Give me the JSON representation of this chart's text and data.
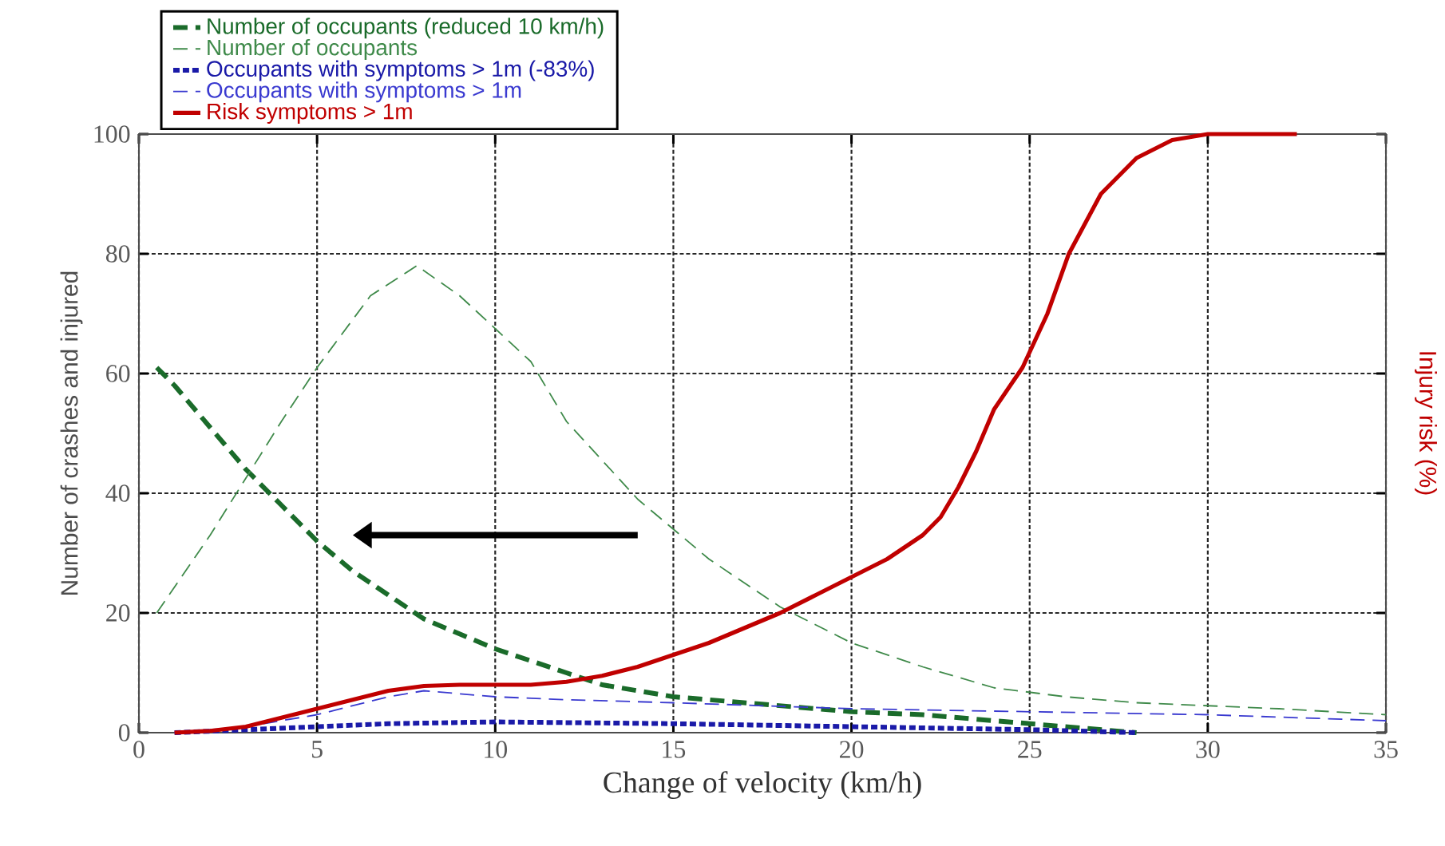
{
  "chart_data": {
    "type": "line",
    "xlabel": "Change of velocity (km/h)",
    "ylabel": "Number of crashes and injured",
    "y2label": "Injury risk (%)",
    "xlim": [
      0,
      35
    ],
    "xticks": [
      0,
      5,
      10,
      15,
      20,
      25,
      30,
      35
    ],
    "ylim": [
      0,
      100
    ],
    "yticks": [
      0,
      20,
      40,
      60,
      80,
      100
    ],
    "grid": true,
    "legend": "top left",
    "series": [
      {
        "name": "Number of occupants (reduced 10 km/h)",
        "color": "#1a6b2a",
        "line_style": "dashed",
        "x": [
          0.5,
          1,
          2,
          3,
          4,
          5,
          6,
          7,
          8,
          9,
          10,
          11,
          12,
          13,
          14,
          15,
          16,
          18,
          20,
          22,
          24,
          26,
          28
        ],
        "values": [
          61,
          58,
          51,
          44,
          38,
          32,
          27,
          23,
          19,
          16.5,
          14,
          12,
          10,
          8,
          7,
          6,
          5.5,
          4.5,
          3.5,
          3,
          2,
          1,
          0
        ]
      },
      {
        "name": "Number of occupants",
        "color": "#3f8a4a",
        "line_style": "dashed",
        "x": [
          0.5,
          2,
          4,
          5,
          6.5,
          7.8,
          9,
          11,
          12,
          14,
          16,
          18,
          20,
          22,
          24,
          26,
          28,
          30,
          32,
          35
        ],
        "values": [
          20,
          33,
          52,
          61,
          73,
          78,
          73,
          62,
          52,
          39,
          29,
          21,
          15,
          11,
          7.5,
          6,
          5,
          4.5,
          4,
          3
        ]
      },
      {
        "name": "Occupants with symptoms > 1m (-83%)",
        "color": "#1a1aa8",
        "line_style": "dotted",
        "x": [
          1,
          3,
          5,
          7,
          10,
          15,
          20,
          25,
          28
        ],
        "values": [
          0,
          0.5,
          1,
          1.5,
          1.8,
          1.5,
          1,
          0.5,
          0
        ]
      },
      {
        "name": "Occupants with symptoms > 1m",
        "color": "#3a3ad0",
        "line_style": "dashed",
        "x": [
          1,
          3,
          5,
          7,
          8,
          10,
          12,
          15,
          20,
          25,
          30,
          35
        ],
        "values": [
          0,
          1,
          3,
          6,
          7,
          6,
          5.5,
          5,
          4,
          3.5,
          3,
          2
        ]
      },
      {
        "name": "Risk symptoms > 1m",
        "color": "#c00000",
        "line_style": "solid",
        "x": [
          1,
          2,
          3,
          4,
          5,
          6,
          7,
          8,
          9,
          10,
          11,
          12,
          13,
          14,
          15,
          16,
          17,
          18,
          19,
          20,
          21,
          22,
          22.5,
          23,
          23.5,
          24,
          24.8,
          25.5,
          26.1,
          27,
          28,
          29,
          30,
          32.5
        ],
        "values": [
          0,
          0.3,
          1,
          2.5,
          4,
          5.5,
          7,
          7.8,
          8,
          8,
          8,
          8.5,
          9.5,
          11,
          13,
          15,
          17.5,
          20,
          23,
          26,
          29,
          33,
          36,
          41,
          47,
          54,
          61,
          70,
          80,
          90,
          96,
          99,
          100,
          100
        ]
      }
    ]
  }
}
